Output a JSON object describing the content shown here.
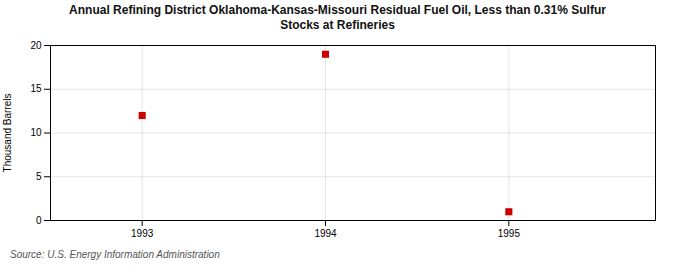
{
  "chart_data": {
    "type": "scatter",
    "title": "Annual Refining District Oklahoma-Kansas-Missouri Residual Fuel Oil, Less than 0.31% Sulfur\nStocks at Refineries",
    "x": [
      1993,
      1994,
      1995
    ],
    "values": [
      12,
      19,
      1
    ],
    "ylabel": "Thousand Barrels",
    "source": "Source: U.S. Energy Information Administration",
    "xlim": [
      1992.5,
      1995.8
    ],
    "xticks": [
      1993,
      1994,
      1995
    ],
    "ylim": [
      0,
      20
    ],
    "yticks": [
      0,
      5,
      10,
      15,
      20
    ],
    "color": "#cc0000",
    "marker": "square",
    "grid": true
  }
}
